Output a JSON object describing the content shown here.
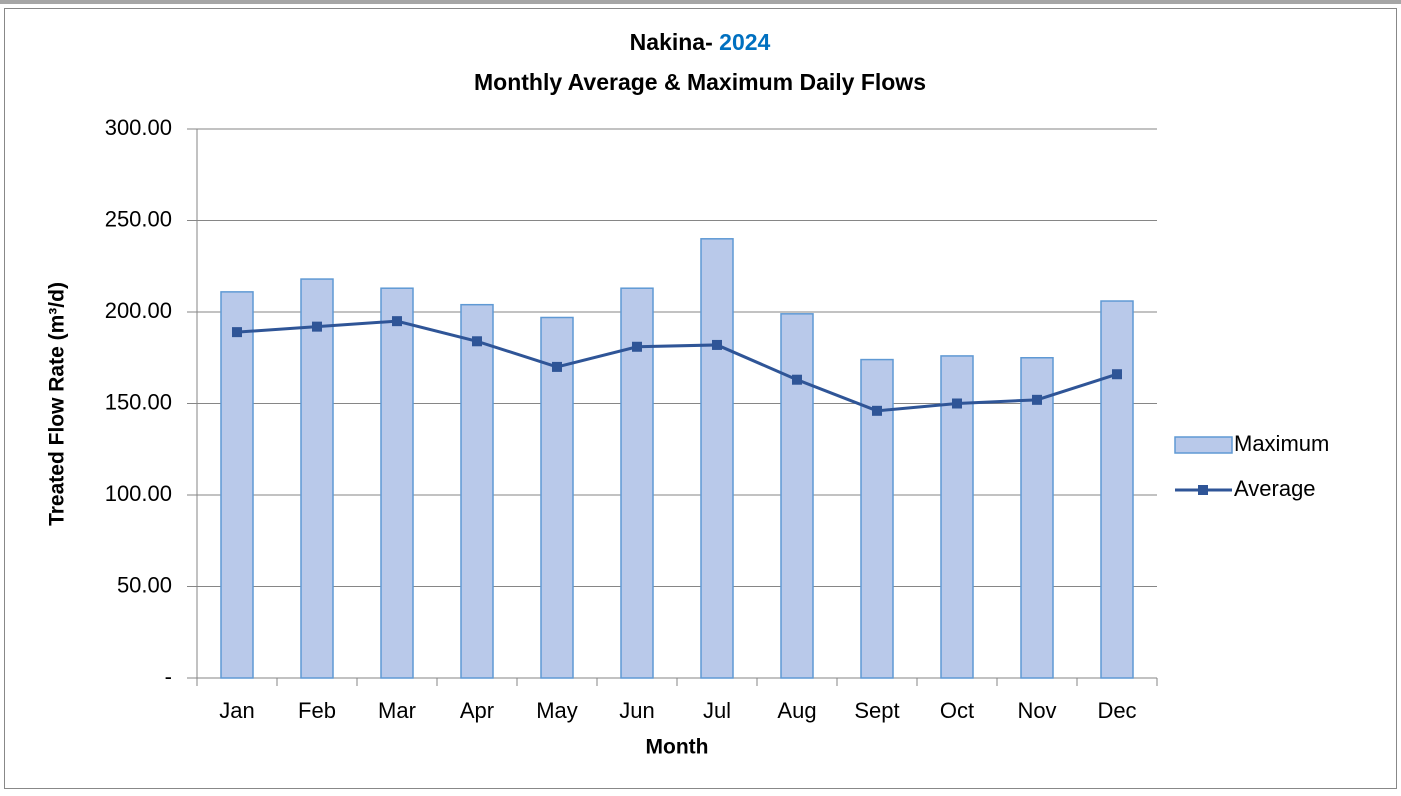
{
  "chart_data": {
    "type": "bar_line",
    "title": {
      "text": "Nakina-",
      "highlight": "2024"
    },
    "subtitle": "Monthly Average & Maximum Daily Flows",
    "x_label": "Month",
    "y_label": "Treated Flow Rate (m³/d)",
    "categories": [
      "Jan",
      "Feb",
      "Mar",
      "Apr",
      "May",
      "Jun",
      "Jul",
      "Aug",
      "Sept",
      "Oct",
      "Nov",
      "Dec"
    ],
    "series": [
      {
        "name": "Maximum",
        "type": "bar",
        "color": "#b9c9ea",
        "edge_color": "#5f99d4",
        "values": [
          211,
          218,
          213,
          204,
          197,
          213,
          240,
          199,
          174,
          176,
          175,
          206
        ]
      },
      {
        "name": "Average",
        "type": "line",
        "color": "#2f5597",
        "values": [
          189,
          192,
          195,
          184,
          170,
          181,
          182,
          163,
          146,
          150,
          152,
          166
        ]
      }
    ],
    "ylim": [
      0,
      300
    ],
    "yticks": [
      {
        "value": 0,
        "label": "-"
      },
      {
        "value": 50,
        "label": "50.00"
      },
      {
        "value": 100,
        "label": "100.00"
      },
      {
        "value": 150,
        "label": "150.00"
      },
      {
        "value": 200,
        "label": "200.00"
      },
      {
        "value": 250,
        "label": "250.00"
      },
      {
        "value": 300,
        "label": "300.00"
      }
    ],
    "grid": true,
    "legend": "right",
    "highlight_color": "#0070c0"
  }
}
